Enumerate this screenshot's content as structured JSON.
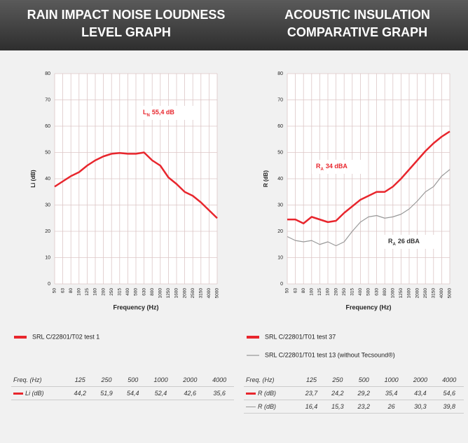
{
  "chart_data": [
    {
      "type": "line",
      "title": [
        "RAIN IMPACT NOISE LOUDNESS",
        "LEVEL GRAPH"
      ],
      "y_label": "Li (dB)",
      "x_label": "Frequency (Hz)",
      "categories": [
        "50",
        "63",
        "80",
        "100",
        "125",
        "160",
        "200",
        "250",
        "315",
        "400",
        "500",
        "630",
        "800",
        "1000",
        "1250",
        "1600",
        "2000",
        "2500",
        "3150",
        "4000",
        "5000"
      ],
      "ylim": [
        0,
        80
      ],
      "yticks": [
        0,
        10,
        20,
        30,
        40,
        50,
        60,
        70,
        80
      ],
      "grid": true,
      "series": [
        {
          "name": "SRL C/22801/T02 test 1",
          "color": "#e8262d",
          "values": [
            37,
            39,
            41,
            42.5,
            45,
            47,
            48.5,
            49.5,
            49.8,
            49.5,
            49.5,
            50,
            47,
            45,
            40.5,
            38,
            35,
            33.5,
            31,
            28,
            25
          ]
        }
      ],
      "annotations": [
        {
          "main": "L",
          "sub": "N",
          "rest": "55,4 dB",
          "color": "#e8262d"
        }
      ]
    },
    {
      "type": "line",
      "title": [
        "ACOUSTIC INSULATION",
        "COMPARATIVE GRAPH"
      ],
      "y_label": "R (dB)",
      "x_label": "Frequency (Hz)",
      "categories": [
        "50",
        "63",
        "80",
        "100",
        "125",
        "160",
        "200",
        "250",
        "315",
        "400",
        "500",
        "630",
        "800",
        "1000",
        "1250",
        "1600",
        "2000",
        "2500",
        "3150",
        "4000",
        "5000"
      ],
      "ylim": [
        0,
        80
      ],
      "yticks": [
        0,
        10,
        20,
        30,
        40,
        50,
        60,
        70,
        80
      ],
      "grid": true,
      "series": [
        {
          "name": "SRL C/22801/T01 test 37",
          "color": "#e8262d",
          "values": [
            24.5,
            24.5,
            23,
            25.5,
            24.5,
            23.5,
            24,
            27,
            29.5,
            32,
            33.5,
            35,
            35,
            37,
            40,
            43.5,
            47,
            50.5,
            53.5,
            56,
            58
          ]
        },
        {
          "name": "SRL C/22801/T01 test 13 (without Tecsound®)",
          "color": "#999999",
          "values": [
            18,
            16.5,
            16,
            16.5,
            15,
            16,
            14.5,
            16,
            20,
            23.5,
            25.5,
            26,
            25,
            25.5,
            26.5,
            28.5,
            31.5,
            35,
            37,
            41,
            43.5
          ]
        }
      ],
      "annotations": [
        {
          "main": "R",
          "sub": "A",
          "rest": "34 dBA",
          "color": "#e8262d"
        },
        {
          "main": "R",
          "sub": "A",
          "rest": "26 dBA",
          "color": "#333333"
        }
      ]
    }
  ],
  "tables": [
    {
      "header": {
        "label": "Freq. (Hz)",
        "values": [
          "125",
          "250",
          "500",
          "1000",
          "2000",
          "4000"
        ]
      },
      "rows": [
        {
          "label": "Li (dB)",
          "color": "#e8262d",
          "values": [
            "44,2",
            "51,9",
            "54,4",
            "52,4",
            "42,6",
            "35,6"
          ]
        }
      ]
    },
    {
      "header": {
        "label": "Freq. (Hz)",
        "values": [
          "125",
          "250",
          "500",
          "1000",
          "2000",
          "4000"
        ]
      },
      "rows": [
        {
          "label": "R (dB)",
          "color": "#e8262d",
          "values": [
            "23,7",
            "24,2",
            "29,2",
            "35,4",
            "43,4",
            "54,6"
          ]
        },
        {
          "label": "R (dB)",
          "color": "#999999",
          "values": [
            "16,4",
            "15,3",
            "23,2",
            "26",
            "30,3",
            "39,8"
          ]
        }
      ]
    }
  ]
}
